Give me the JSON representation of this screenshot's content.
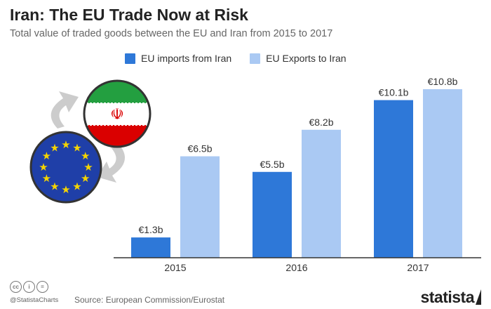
{
  "title": "Iran: The EU Trade Now at Risk",
  "subtitle": "Total value of traded goods between the EU and Iran from 2015 to 2017",
  "legend": {
    "imports_label": "EU imports from Iran",
    "exports_label": "EU Exports to Iran"
  },
  "colors": {
    "imports": "#2e78d8",
    "exports": "#aac9f3",
    "axis": "#333333"
  },
  "chart_data": {
    "type": "bar",
    "title": "Iran: The EU Trade Now at Risk",
    "subtitle": "Total value of traded goods between the EU and Iran from 2015 to 2017",
    "categories": [
      "2015",
      "2016",
      "2017"
    ],
    "series": [
      {
        "name": "EU imports from Iran",
        "values": [
          1.3,
          5.5,
          10.1
        ],
        "labels": [
          "€1.3b",
          "€5.5b",
          "€10.1b"
        ]
      },
      {
        "name": "EU Exports to Iran",
        "values": [
          6.5,
          8.2,
          10.8
        ],
        "labels": [
          "€6.5b",
          "€8.2b",
          "€10.8b"
        ]
      }
    ],
    "ylim": [
      0,
      10.8
    ],
    "grid": false,
    "legend_position": "top"
  },
  "footer": {
    "cc_icons": [
      "cc",
      "by",
      "nd"
    ],
    "handle": "@StatistaCharts",
    "source": "Source: European Commission/Eurostat",
    "brand": "statista"
  },
  "illustration": {
    "icons": [
      "iran-flag-icon",
      "eu-flag-icon",
      "cycle-arrows-icon"
    ]
  }
}
